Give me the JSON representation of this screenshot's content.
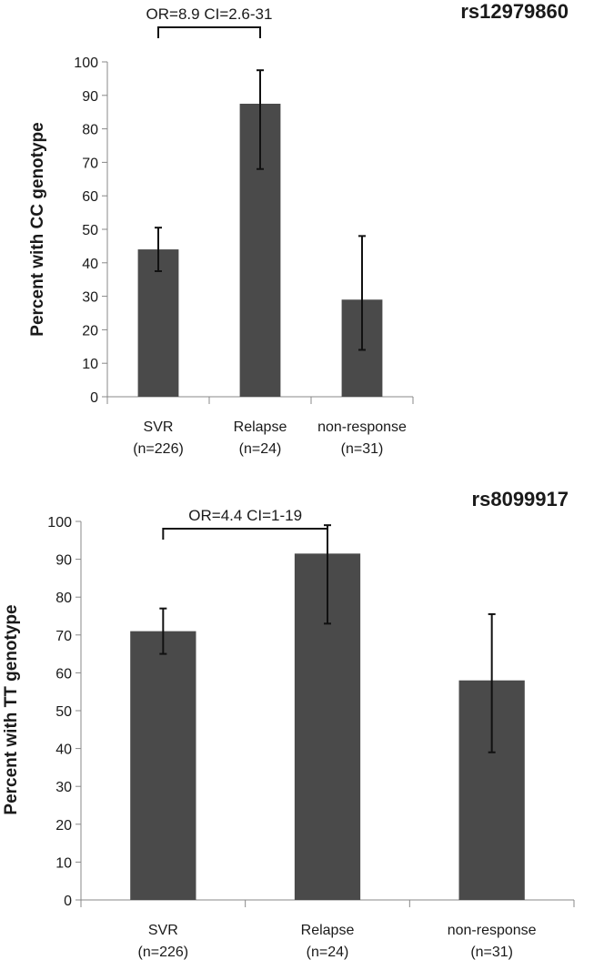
{
  "chart_data": [
    {
      "type": "bar",
      "title": "rs12979860",
      "ylabel": "Percent with CC genotype",
      "xlabel": "",
      "ylim": [
        0,
        100
      ],
      "yticks": [
        0,
        10,
        20,
        30,
        40,
        50,
        60,
        70,
        80,
        90,
        100
      ],
      "categories": [
        {
          "name": "SVR",
          "n": "(n=226)"
        },
        {
          "name": "Relapse",
          "n": "(n=24)"
        },
        {
          "name": "non-response",
          "n": "(n=31)"
        }
      ],
      "values": [
        44,
        87.5,
        29
      ],
      "error_low": [
        37.5,
        68,
        14
      ],
      "error_high": [
        50.5,
        97.5,
        48
      ],
      "bar_color": "#4a4a4a",
      "annotation": {
        "text": "OR=8.9 CI=2.6-31",
        "from_category": 0,
        "to_category": 1
      }
    },
    {
      "type": "bar",
      "title": "rs8099917",
      "ylabel": "Percent with TT genotype",
      "xlabel": "",
      "ylim": [
        0,
        100
      ],
      "yticks": [
        0,
        10,
        20,
        30,
        40,
        50,
        60,
        70,
        80,
        90,
        100
      ],
      "categories": [
        {
          "name": "SVR",
          "n": "(n=226)"
        },
        {
          "name": "Relapse",
          "n": "(n=24)"
        },
        {
          "name": "non-response",
          "n": "(n=31)"
        }
      ],
      "values": [
        71,
        91.5,
        58
      ],
      "error_low": [
        65,
        73,
        39
      ],
      "error_high": [
        77,
        99,
        75.5
      ],
      "bar_color": "#4a4a4a",
      "annotation": {
        "text": "OR=4.4 CI=1-19",
        "from_category": 0,
        "to_category": 1
      }
    }
  ]
}
